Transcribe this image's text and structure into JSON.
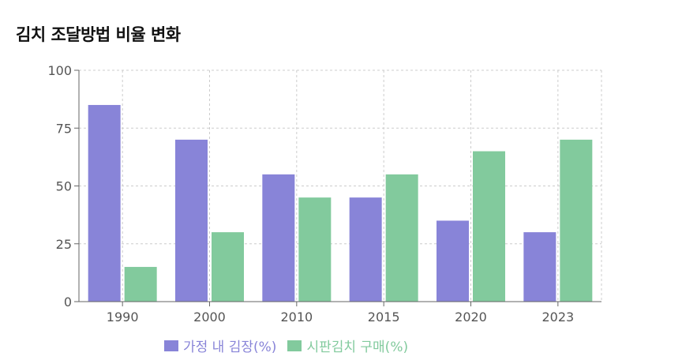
{
  "title": "김치 조달방법 비율 변화",
  "chart_data": {
    "type": "bar",
    "title": "김치 조달방법 비율 변화",
    "categories": [
      "1990",
      "2000",
      "2010",
      "2015",
      "2020",
      "2023"
    ],
    "series": [
      {
        "name": "가정 내 김장(%)",
        "color": "#8884d8",
        "values": [
          85,
          70,
          55,
          45,
          35,
          30
        ]
      },
      {
        "name": "시판김치 구매(%)",
        "color": "#82ca9d",
        "values": [
          15,
          30,
          45,
          55,
          65,
          70
        ]
      }
    ],
    "yticks": [
      0,
      25,
      50,
      75,
      100
    ],
    "ylim": [
      0,
      100
    ],
    "xlabel": "",
    "ylabel": "",
    "grid": true,
    "legend_position": "bottom"
  }
}
